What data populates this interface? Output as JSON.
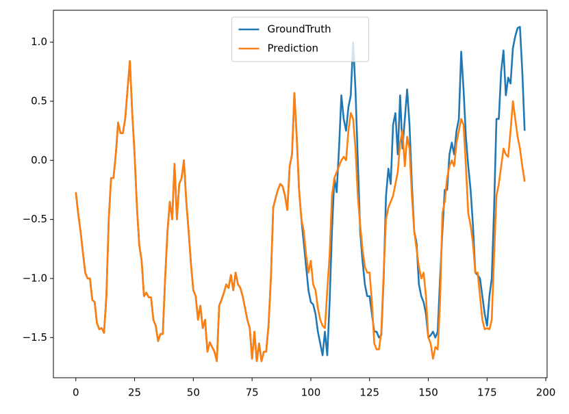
{
  "chart_data": {
    "type": "line",
    "x": [
      0,
      1,
      2,
      3,
      4,
      5,
      6,
      7,
      8,
      9,
      10,
      11,
      12,
      13,
      14,
      15,
      16,
      17,
      18,
      19,
      20,
      21,
      22,
      23,
      24,
      25,
      26,
      27,
      28,
      29,
      30,
      31,
      32,
      33,
      34,
      35,
      36,
      37,
      38,
      39,
      40,
      41,
      42,
      43,
      44,
      45,
      46,
      47,
      48,
      49,
      50,
      51,
      52,
      53,
      54,
      55,
      56,
      57,
      58,
      59,
      60,
      61,
      62,
      63,
      64,
      65,
      66,
      67,
      68,
      69,
      70,
      71,
      72,
      73,
      74,
      75,
      76,
      77,
      78,
      79,
      80,
      81,
      82,
      83,
      84,
      85,
      86,
      87,
      88,
      89,
      90,
      91,
      92,
      93,
      94,
      95,
      96,
      97,
      98,
      99,
      100,
      101,
      102,
      103,
      104,
      105,
      106,
      107,
      108,
      109,
      110,
      111,
      112,
      113,
      114,
      115,
      116,
      117,
      118,
      119,
      120,
      121,
      122,
      123,
      124,
      125,
      126,
      127,
      128,
      129,
      130,
      131,
      132,
      133,
      134,
      135,
      136,
      137,
      138,
      139,
      140,
      141,
      142,
      143,
      144,
      145,
      146,
      147,
      148,
      149,
      150,
      151,
      152,
      153,
      154,
      155,
      156,
      157,
      158,
      159,
      160,
      161,
      162,
      163,
      164,
      165,
      166,
      167,
      168,
      169,
      170,
      171,
      172,
      173,
      174,
      175,
      176,
      177,
      178,
      179,
      180,
      181,
      182,
      183,
      184,
      185,
      186,
      187,
      188,
      189,
      190,
      191
    ],
    "series": [
      {
        "name": "GroundTruth",
        "color": "#1f77b4",
        "values": [
          -0.27,
          -0.45,
          -0.6,
          -0.78,
          -0.95,
          -1.0,
          -1.0,
          -1.18,
          -1.2,
          -1.38,
          -1.43,
          -1.42,
          -1.46,
          -1.15,
          -0.5,
          -0.15,
          -0.15,
          0.05,
          0.32,
          0.23,
          0.23,
          0.35,
          0.6,
          0.84,
          0.4,
          0.05,
          -0.4,
          -0.72,
          -0.85,
          -1.15,
          -1.12,
          -1.16,
          -1.16,
          -1.35,
          -1.4,
          -1.53,
          -1.47,
          -1.47,
          -1.0,
          -0.6,
          -0.35,
          -0.5,
          -0.03,
          -0.5,
          -0.2,
          -0.15,
          0.0,
          -0.35,
          -0.6,
          -0.88,
          -1.1,
          -1.15,
          -1.35,
          -1.23,
          -1.42,
          -1.35,
          -1.62,
          -1.54,
          -1.58,
          -1.62,
          -1.7,
          -1.23,
          -1.18,
          -1.12,
          -1.05,
          -1.08,
          -0.97,
          -1.1,
          -0.95,
          -1.05,
          -1.08,
          -1.15,
          -1.25,
          -1.35,
          -1.42,
          -1.68,
          -1.45,
          -1.7,
          -1.55,
          -1.7,
          -1.62,
          -1.62,
          -1.4,
          -1.0,
          -0.4,
          -0.32,
          -0.25,
          -0.2,
          -0.22,
          -0.3,
          -0.42,
          -0.05,
          0.05,
          0.57,
          0.2,
          -0.25,
          -0.5,
          -0.7,
          -0.9,
          -1.1,
          -1.2,
          -1.22,
          -1.3,
          -1.45,
          -1.55,
          -1.65,
          -1.45,
          -1.65,
          -1.2,
          -0.6,
          -0.15,
          -0.27,
          0.1,
          0.55,
          0.35,
          0.25,
          0.45,
          0.55,
          1.0,
          0.6,
          0.0,
          -0.6,
          -0.85,
          -1.05,
          -1.15,
          -1.15,
          -1.3,
          -1.45,
          -1.45,
          -1.5,
          -1.48,
          -1.0,
          -0.3,
          -0.07,
          -0.2,
          0.3,
          0.4,
          0.05,
          0.55,
          0.1,
          0.35,
          0.6,
          0.3,
          -0.2,
          -0.6,
          -0.7,
          -1.05,
          -1.15,
          -1.2,
          -1.3,
          -1.5,
          -1.48,
          -1.45,
          -1.5,
          -1.45,
          -1.0,
          -0.6,
          -0.25,
          -0.25,
          0.05,
          0.15,
          0.05,
          0.25,
          0.35,
          0.92,
          0.6,
          0.2,
          -0.05,
          -0.25,
          -0.55,
          -0.95,
          -0.97,
          -1.0,
          -1.15,
          -1.3,
          -1.4,
          -1.15,
          -1.0,
          -0.4,
          0.35,
          0.35,
          0.75,
          0.93,
          0.55,
          0.7,
          0.65,
          0.95,
          1.05,
          1.12,
          1.13,
          0.75,
          0.25
        ]
      },
      {
        "name": "Prediction",
        "color": "#ff7f0e",
        "values": [
          -0.27,
          -0.45,
          -0.6,
          -0.78,
          -0.95,
          -1.0,
          -1.0,
          -1.18,
          -1.2,
          -1.38,
          -1.43,
          -1.42,
          -1.46,
          -1.15,
          -0.5,
          -0.15,
          -0.15,
          0.05,
          0.32,
          0.23,
          0.23,
          0.35,
          0.6,
          0.84,
          0.4,
          0.05,
          -0.4,
          -0.72,
          -0.85,
          -1.15,
          -1.12,
          -1.16,
          -1.16,
          -1.35,
          -1.4,
          -1.53,
          -1.47,
          -1.47,
          -1.0,
          -0.6,
          -0.35,
          -0.5,
          -0.03,
          -0.5,
          -0.2,
          -0.15,
          0.0,
          -0.35,
          -0.6,
          -0.88,
          -1.1,
          -1.15,
          -1.35,
          -1.23,
          -1.42,
          -1.35,
          -1.62,
          -1.54,
          -1.58,
          -1.62,
          -1.7,
          -1.23,
          -1.18,
          -1.12,
          -1.05,
          -1.08,
          -0.97,
          -1.1,
          -0.95,
          -1.05,
          -1.08,
          -1.15,
          -1.25,
          -1.35,
          -1.42,
          -1.68,
          -1.45,
          -1.7,
          -1.55,
          -1.7,
          -1.62,
          -1.62,
          -1.4,
          -1.0,
          -0.4,
          -0.32,
          -0.25,
          -0.2,
          -0.22,
          -0.3,
          -0.42,
          -0.05,
          0.05,
          0.57,
          0.2,
          -0.25,
          -0.5,
          -0.6,
          -0.8,
          -0.95,
          -0.85,
          -1.05,
          -1.1,
          -1.25,
          -1.35,
          -1.4,
          -1.42,
          -1.1,
          -0.8,
          -0.3,
          -0.15,
          -0.1,
          -0.05,
          0.0,
          0.03,
          0.0,
          0.25,
          0.4,
          0.35,
          0.1,
          -0.3,
          -0.55,
          -0.75,
          -0.9,
          -0.95,
          -0.95,
          -1.2,
          -1.55,
          -1.6,
          -1.6,
          -1.45,
          -0.95,
          -0.5,
          -0.4,
          -0.35,
          -0.3,
          -0.2,
          -0.1,
          0.15,
          0.25,
          -0.05,
          0.2,
          0.1,
          -0.3,
          -0.6,
          -0.75,
          -0.9,
          -1.0,
          -0.95,
          -1.15,
          -1.5,
          -1.55,
          -1.68,
          -1.58,
          -1.6,
          -1.2,
          -0.45,
          -0.35,
          -0.15,
          -0.05,
          0.0,
          -0.05,
          0.15,
          0.25,
          0.35,
          0.3,
          -0.05,
          -0.45,
          -0.55,
          -0.7,
          -0.95,
          -0.95,
          -1.15,
          -1.35,
          -1.43,
          -1.42,
          -1.43,
          -1.35,
          -0.8,
          -0.3,
          -0.2,
          -0.05,
          0.1,
          0.05,
          0.03,
          0.25,
          0.5,
          0.35,
          0.2,
          0.1,
          -0.05,
          -0.18
        ]
      }
    ],
    "xlim": [
      -9.55,
      200.55
    ],
    "ylim": [
      -1.84,
      1.27
    ],
    "xticks": [
      0,
      25,
      50,
      75,
      100,
      125,
      150,
      175,
      200
    ],
    "yticks": [
      {
        "value": -1.5,
        "label": "−1.5"
      },
      {
        "value": -1,
        "label": "−1.0"
      },
      {
        "value": -0.5,
        "label": "−0.5"
      },
      {
        "value": 0,
        "label": "0.0"
      },
      0.5,
      {
        "value": 1,
        "label": "1.0"
      }
    ],
    "legend": "upper center",
    "grid": false
  }
}
